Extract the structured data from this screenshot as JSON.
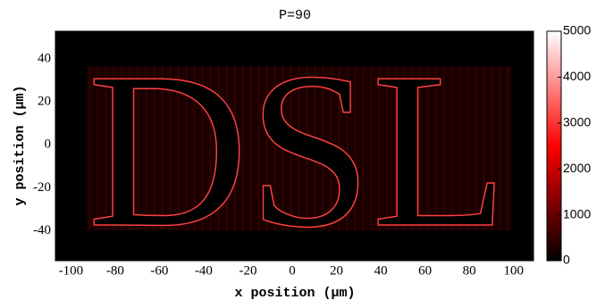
{
  "chart_data": {
    "type": "heatmap",
    "title": "P=90",
    "x_label": "x position (μm)",
    "y_label": "y position (μm)",
    "image_text": "DSL",
    "xlim": [
      -107,
      109
    ],
    "xticks": [
      -100,
      -80,
      -60,
      -40,
      -20,
      0,
      20,
      40,
      60,
      80,
      100
    ],
    "ylim": [
      -54,
      53
    ],
    "yticks": [
      -40,
      -20,
      0,
      20,
      40
    ],
    "colorbar_lim": [
      0,
      5000
    ],
    "colorbar_ticks": [
      0,
      1000,
      2000,
      3000,
      4000,
      5000
    ],
    "colormap": [
      "#000000",
      "#ff0000",
      "#ffffff"
    ]
  }
}
